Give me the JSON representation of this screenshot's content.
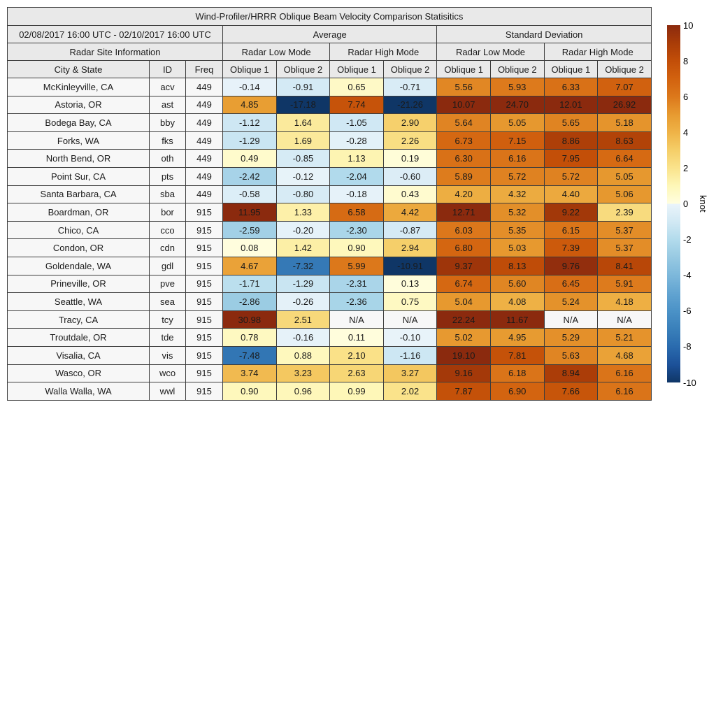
{
  "chart_data": {
    "type": "heatmap",
    "title": "Wind-Profiler/HRRR Oblique Beam Velocity Comparison Statisitics",
    "date_range": "02/08/2017 16:00 UTC - 02/10/2017 16:00 UTC",
    "header": {
      "site_info": "Radar Site Information",
      "average": "Average",
      "standard_deviation": "Standard Deviation",
      "radar_low_mode": "Radar Low Mode",
      "radar_high_mode": "Radar High Mode",
      "city_state": "City & State",
      "id": "ID",
      "freq": "Freq",
      "oblique_1": "Oblique 1",
      "oblique_2": "Oblique 2"
    },
    "na_text": "N/A",
    "columns_order": [
      "avg_low_ob1",
      "avg_low_ob2",
      "avg_high_ob1",
      "avg_high_ob2",
      "sd_low_ob1",
      "sd_low_ob2",
      "sd_high_ob1",
      "sd_high_ob2"
    ],
    "rows": [
      {
        "city": "McKinleyville, CA",
        "id": "acv",
        "freq": "449",
        "values": [
          -0.14,
          -0.91,
          0.65,
          -0.71,
          5.56,
          5.93,
          6.33,
          7.07
        ]
      },
      {
        "city": "Astoria, OR",
        "id": "ast",
        "freq": "449",
        "values": [
          4.85,
          -17.18,
          7.74,
          -21.26,
          10.07,
          24.7,
          12.01,
          26.92
        ]
      },
      {
        "city": "Bodega Bay, CA",
        "id": "bby",
        "freq": "449",
        "values": [
          -1.12,
          1.64,
          -1.05,
          2.9,
          5.64,
          5.05,
          5.65,
          5.18
        ]
      },
      {
        "city": "Forks, WA",
        "id": "fks",
        "freq": "449",
        "values": [
          -1.29,
          1.69,
          -0.28,
          2.26,
          6.73,
          7.15,
          8.86,
          8.63
        ]
      },
      {
        "city": "North Bend, OR",
        "id": "oth",
        "freq": "449",
        "values": [
          0.49,
          -0.85,
          1.13,
          0.19,
          6.3,
          6.16,
          7.95,
          6.64
        ]
      },
      {
        "city": "Point Sur, CA",
        "id": "pts",
        "freq": "449",
        "values": [
          -2.42,
          -0.12,
          -2.04,
          -0.6,
          5.89,
          5.72,
          5.72,
          5.05
        ]
      },
      {
        "city": "Santa Barbara, CA",
        "id": "sba",
        "freq": "449",
        "values": [
          -0.58,
          -0.8,
          -0.18,
          0.43,
          4.2,
          4.32,
          4.4,
          5.06
        ]
      },
      {
        "city": "Boardman, OR",
        "id": "bor",
        "freq": "915",
        "values": [
          11.95,
          1.33,
          6.58,
          4.42,
          12.71,
          5.32,
          9.22,
          2.39
        ]
      },
      {
        "city": "Chico, CA",
        "id": "cco",
        "freq": "915",
        "values": [
          -2.59,
          -0.2,
          -2.3,
          -0.87,
          6.03,
          5.35,
          6.15,
          5.37
        ]
      },
      {
        "city": "Condon, OR",
        "id": "cdn",
        "freq": "915",
        "values": [
          0.08,
          1.42,
          0.9,
          2.94,
          6.8,
          5.03,
          7.39,
          5.37
        ]
      },
      {
        "city": "Goldendale, WA",
        "id": "gdl",
        "freq": "915",
        "values": [
          4.67,
          -7.32,
          5.99,
          -10.91,
          9.37,
          8.13,
          9.76,
          8.41
        ]
      },
      {
        "city": "Prineville, OR",
        "id": "pve",
        "freq": "915",
        "values": [
          -1.71,
          -1.29,
          -2.31,
          0.13,
          6.74,
          5.6,
          6.45,
          5.91
        ]
      },
      {
        "city": "Seattle, WA",
        "id": "sea",
        "freq": "915",
        "values": [
          -2.86,
          -0.26,
          -2.36,
          0.75,
          5.04,
          4.08,
          5.24,
          4.18
        ]
      },
      {
        "city": "Tracy, CA",
        "id": "tcy",
        "freq": "915",
        "values": [
          30.98,
          2.51,
          null,
          null,
          22.24,
          11.67,
          null,
          null
        ]
      },
      {
        "city": "Troutdale, OR",
        "id": "tde",
        "freq": "915",
        "values": [
          0.78,
          -0.16,
          0.11,
          -0.1,
          5.02,
          4.95,
          5.29,
          5.21
        ]
      },
      {
        "city": "Visalia, CA",
        "id": "vis",
        "freq": "915",
        "values": [
          -7.48,
          0.88,
          2.1,
          -1.16,
          19.1,
          7.81,
          5.63,
          4.68
        ]
      },
      {
        "city": "Wasco, OR",
        "id": "wco",
        "freq": "915",
        "values": [
          3.74,
          3.23,
          2.63,
          3.27,
          9.16,
          6.18,
          8.94,
          6.16
        ]
      },
      {
        "city": "Walla Walla, WA",
        "id": "wwl",
        "freq": "915",
        "values": [
          0.9,
          0.96,
          0.99,
          2.02,
          7.87,
          6.9,
          7.66,
          6.16
        ]
      }
    ],
    "colorbar": {
      "unit": "knot",
      "min": -10,
      "max": 10,
      "ticks": [
        10,
        8,
        6,
        4,
        2,
        0,
        -2,
        -4,
        -6,
        -8,
        -10
      ],
      "positive_stops": [
        "#fffee0",
        "#fef7b8",
        "#fae38c",
        "#f5ce68",
        "#efb347",
        "#e79a30",
        "#dc781b",
        "#d2620f",
        "#c24e08",
        "#a93c08",
        "#8b2a0e"
      ],
      "negative_stops": [
        "#eaf4fa",
        "#d2e9f4",
        "#b2dbec",
        "#97c9e2",
        "#7db8db",
        "#62a4d1",
        "#4b92c7",
        "#3a80ba",
        "#2a6bae",
        "#1c5199",
        "#0f3666"
      ]
    },
    "colors": {
      "header_bg": "#e9e9e9",
      "label_bg": "#f7f7f7",
      "na_bg": "#f7f7f7",
      "border": "#3d3d3d",
      "text": "#1a1a1a"
    }
  }
}
